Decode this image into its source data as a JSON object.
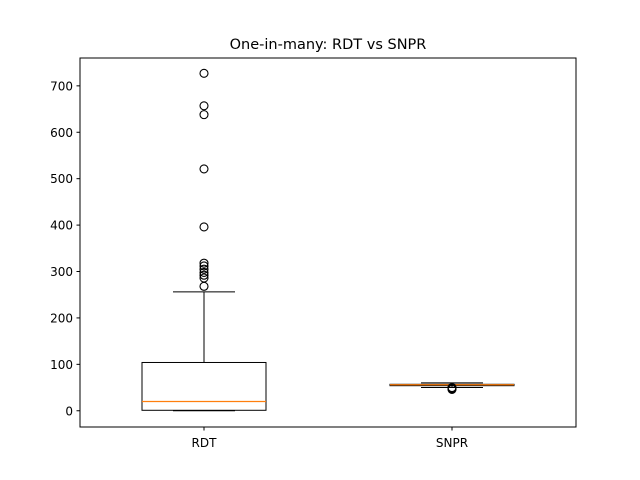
{
  "chart_data": {
    "type": "box",
    "title": "One-in-many: RDT vs SNPR",
    "xlabel": "",
    "ylabel": "",
    "ylim": [
      -35,
      760
    ],
    "yticks": [
      0,
      100,
      200,
      300,
      400,
      500,
      600,
      700
    ],
    "grid": false,
    "categories": [
      "RDT",
      "SNPR"
    ],
    "boxes": [
      {
        "label": "RDT",
        "whisker_low": 0,
        "q1": 1,
        "median": 20,
        "q3": 104,
        "whisker_high": 256,
        "fliers": [
          268,
          286,
          292,
          298,
          305,
          312,
          318,
          396,
          521,
          638,
          657,
          727
        ]
      },
      {
        "label": "SNPR",
        "whisker_low": 50,
        "q1": 54,
        "median": 56,
        "q3": 57,
        "whisker_high": 60,
        "fliers": [
          46,
          48,
          50
        ]
      }
    ],
    "colors": {
      "box": "#000000",
      "median": "#ff7f0e",
      "flier": "#000000"
    }
  }
}
